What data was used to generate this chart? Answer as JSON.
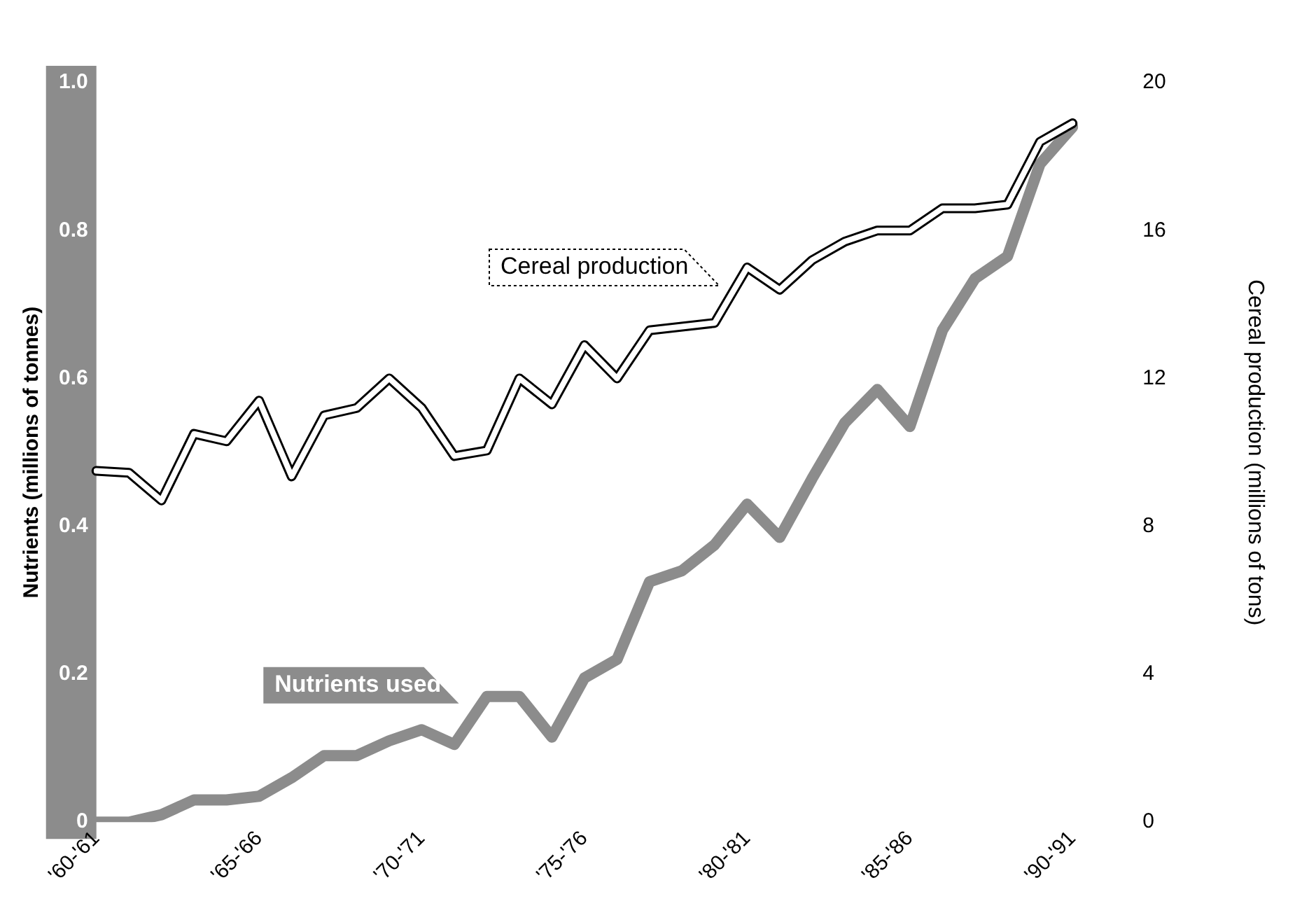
{
  "chart_data": {
    "type": "line",
    "ylabel": "Nutrients (millions of tonnes)",
    "y2label": "Cereal production (millions of tons)",
    "categories": [
      "'60-'61",
      null,
      null,
      null,
      null,
      "'65-'66",
      null,
      null,
      null,
      null,
      "'70-'71",
      null,
      null,
      null,
      null,
      "'75-'76",
      null,
      null,
      null,
      null,
      "'80-'81",
      null,
      null,
      null,
      null,
      "'85-'86",
      null,
      null,
      null,
      null,
      "'90-'91"
    ],
    "series": [
      {
        "name": "Cereal production",
        "axis": "y2",
        "color": "#ffffff",
        "values": [
          9.5,
          9.45,
          8.7,
          10.5,
          10.3,
          11.4,
          9.35,
          11.0,
          11.2,
          12.0,
          11.2,
          9.9,
          10.05,
          12.0,
          11.3,
          12.9,
          12.0,
          13.3,
          13.4,
          13.5,
          15.0,
          14.4,
          15.2,
          15.7,
          16.0,
          16.0,
          16.6,
          16.6,
          16.7,
          18.4,
          18.9
        ]
      },
      {
        "name": "Nutrients used",
        "axis": "y",
        "color": "#8c8c8c",
        "values": [
          0.0,
          0.0,
          0.01,
          0.03,
          0.03,
          0.035,
          0.06,
          0.09,
          0.09,
          0.11,
          0.125,
          0.105,
          0.17,
          0.17,
          0.115,
          0.195,
          0.22,
          0.325,
          0.34,
          0.375,
          0.43,
          0.385,
          0.465,
          0.54,
          0.585,
          0.535,
          0.665,
          0.735,
          0.765,
          0.89,
          0.94
        ]
      }
    ],
    "ylim": [
      0,
      1
    ],
    "yticks": [
      0,
      0.2,
      0.4,
      0.6,
      0.8,
      {
        "value": 1,
        "label": "1.0"
      }
    ],
    "y2lim": [
      0,
      20
    ],
    "y2ticks": [
      0,
      4,
      8,
      12,
      16,
      20
    ],
    "grid": false,
    "legend": false,
    "marker": "none",
    "line_style": "solid"
  }
}
